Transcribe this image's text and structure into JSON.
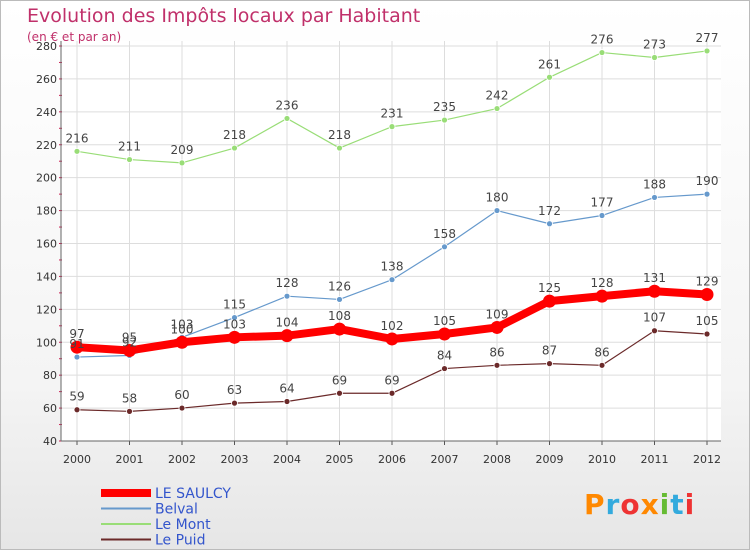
{
  "header": {
    "title": "Evolution des Impôts locaux par Habitant",
    "subtitle": "(en € et par an)"
  },
  "logo": {
    "text": "Proxiti"
  },
  "chart_data": {
    "type": "line",
    "x": [
      "2000",
      "2001",
      "2002",
      "2003",
      "2004",
      "2005",
      "2006",
      "2007",
      "2008",
      "2009",
      "2010",
      "2011",
      "2012"
    ],
    "ylim": [
      40,
      280
    ],
    "yticks": [
      40,
      60,
      80,
      100,
      120,
      140,
      160,
      180,
      200,
      220,
      240,
      260,
      280
    ],
    "grid": true,
    "legend": "bottom-left",
    "series": [
      {
        "name": "Le Puid",
        "color": "#6b2a2a",
        "values": [
          59,
          58,
          60,
          63,
          64,
          69,
          69,
          84,
          86,
          87,
          86,
          107,
          105
        ]
      },
      {
        "name": "Le Mont",
        "color": "#99dd77",
        "values": [
          216,
          211,
          209,
          218,
          236,
          218,
          231,
          235,
          242,
          261,
          276,
          273,
          277
        ]
      },
      {
        "name": "Belval",
        "color": "#6699cc",
        "values": [
          91,
          92,
          103,
          115,
          128,
          126,
          138,
          158,
          180,
          172,
          177,
          188,
          190
        ]
      },
      {
        "name": "LE SAULCY",
        "color": "#ff0000",
        "values": [
          97,
          95,
          100,
          103,
          104,
          108,
          102,
          105,
          109,
          125,
          128,
          131,
          129
        ]
      }
    ],
    "legend_order": [
      "LE SAULCY",
      "Belval",
      "Le Mont",
      "Le Puid"
    ],
    "data_labels": [
      {
        "series": "Le Puid",
        "labels": [
          "59",
          "58",
          "60",
          "63",
          "64",
          "69",
          "69",
          "84",
          "86",
          "87",
          "86",
          "107",
          "105"
        ]
      },
      {
        "series": "Le Mont",
        "labels": [
          "216",
          "211",
          "209",
          "218",
          "236",
          "218",
          "231",
          "235",
          "242",
          "261",
          "276",
          "273",
          "277"
        ]
      },
      {
        "series": "Belval",
        "labels": [
          "91",
          "92",
          "103",
          "115",
          "128",
          "126",
          "138",
          "158",
          "180",
          "172",
          "177",
          "188",
          "190"
        ]
      },
      {
        "series": "LE SAULCY",
        "labels": [
          "97",
          "95",
          "100",
          "103",
          "104",
          "108",
          "102",
          "105",
          "109",
          "125",
          "128",
          "131",
          "129"
        ]
      }
    ]
  }
}
